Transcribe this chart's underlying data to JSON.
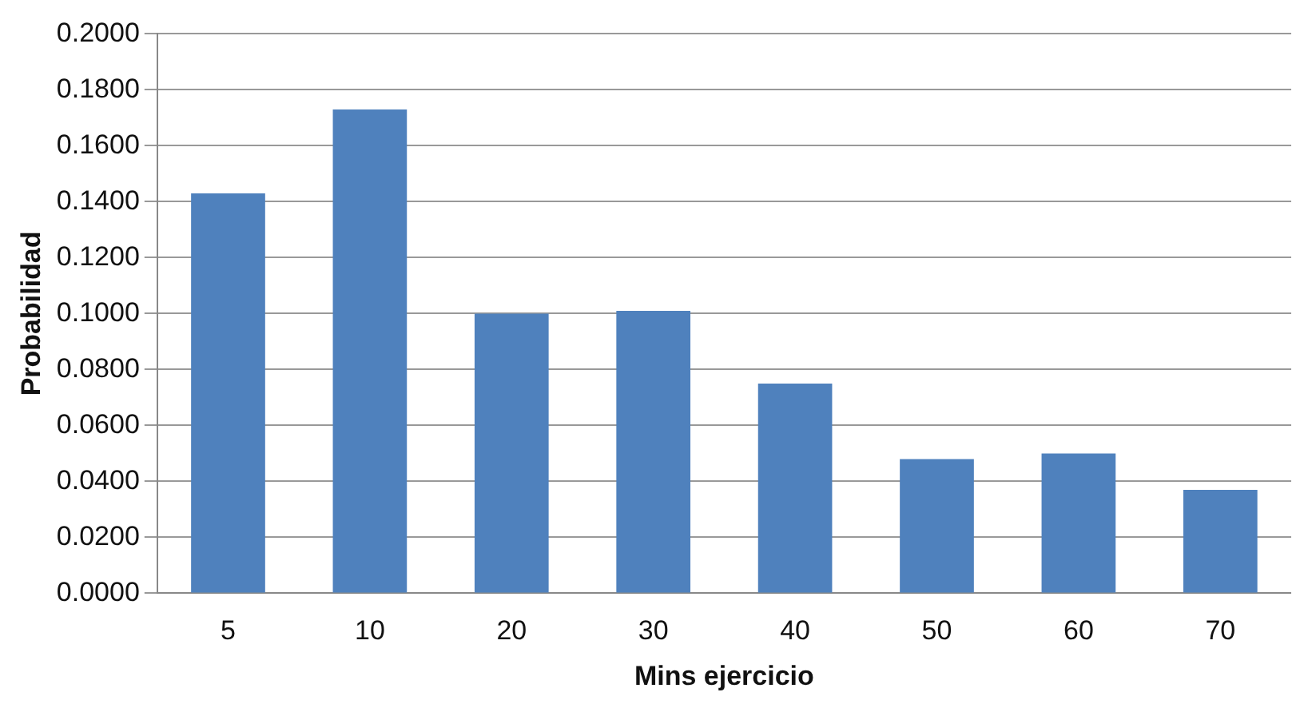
{
  "chart_data": {
    "type": "bar",
    "xlabel": "Mins ejercicio",
    "ylabel": "Probabilidad",
    "categories": [
      "5",
      "10",
      "20",
      "30",
      "40",
      "50",
      "60",
      "70"
    ],
    "series": [
      {
        "color": "#4f81bd",
        "values": [
          0.143,
          0.173,
          0.1,
          0.101,
          0.075,
          0.048,
          0.05,
          0.037
        ]
      }
    ],
    "ylim": [
      0,
      0.2
    ],
    "yticks": [
      {
        "value": 0,
        "label": "0.0000"
      },
      {
        "value": 0.02,
        "label": "0.0200"
      },
      {
        "value": 0.04,
        "label": "0.0400"
      },
      {
        "value": 0.06,
        "label": "0.0600"
      },
      {
        "value": 0.08,
        "label": "0.0800"
      },
      {
        "value": 0.1,
        "label": "0.1000"
      },
      {
        "value": 0.12,
        "label": "0.1200"
      },
      {
        "value": 0.14,
        "label": "0.1400"
      },
      {
        "value": 0.16,
        "label": "0.1600"
      },
      {
        "value": 0.18,
        "label": "0.1800"
      },
      {
        "value": 0.2,
        "label": "0.2000"
      }
    ],
    "grid": "y",
    "legend": false
  }
}
